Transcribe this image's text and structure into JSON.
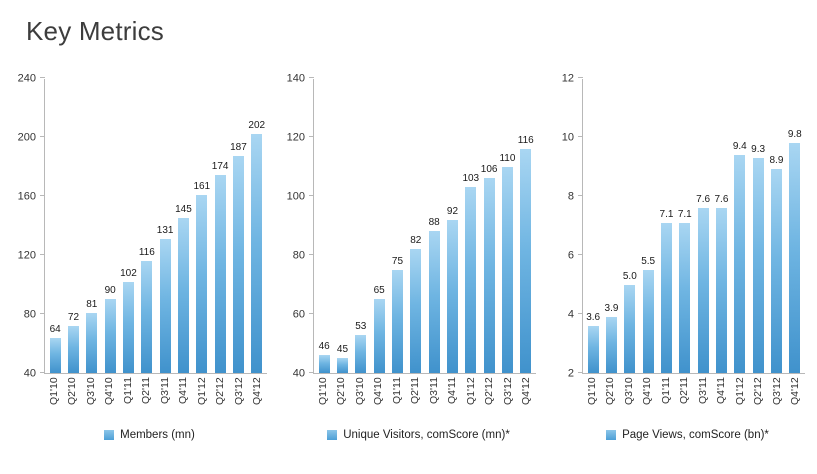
{
  "title": "Key Metrics",
  "colors": {
    "accent_blue": "#4d9fd6",
    "bar_gradient_top": "#a9d6f2",
    "bar_gradient_bottom": "#4092cc",
    "axis_line": "#b8b8b8",
    "title_text": "#3d3d3d"
  },
  "chart_data": [
    {
      "type": "bar",
      "legend": "Members (mn)",
      "categories": [
        "Q1'10",
        "Q2'10",
        "Q3'10",
        "Q4'10",
        "Q1'11",
        "Q2'11",
        "Q3'11",
        "Q4'11",
        "Q1'12",
        "Q2'12",
        "Q3'12",
        "Q4'12"
      ],
      "values": [
        64,
        72,
        81,
        90,
        102,
        116,
        131,
        145,
        161,
        174,
        187,
        202
      ],
      "labels": [
        "64",
        "72",
        "81",
        "90",
        "102",
        "116",
        "131",
        "145",
        "161",
        "174",
        "187",
        "202"
      ],
      "ylim": [
        40,
        240
      ],
      "yticks": [
        40,
        80,
        120,
        160,
        200,
        240
      ],
      "grid": false,
      "legend_position": "bottom"
    },
    {
      "type": "bar",
      "legend": "Unique Visitors, comScore (mn)*",
      "categories": [
        "Q1'10",
        "Q2'10",
        "Q3'10",
        "Q4'10",
        "Q1'11",
        "Q2'11",
        "Q3'11",
        "Q4'11",
        "Q1'12",
        "Q2'12",
        "Q3'12",
        "Q4'12"
      ],
      "values": [
        46,
        45,
        53,
        65,
        75,
        82,
        88,
        92,
        103,
        106,
        110,
        116
      ],
      "labels": [
        "46",
        "45",
        "53",
        "65",
        "75",
        "82",
        "88",
        "92",
        "103",
        "106",
        "110",
        "116"
      ],
      "ylim": [
        40,
        140
      ],
      "yticks": [
        40,
        60,
        80,
        100,
        120,
        140
      ],
      "grid": false,
      "legend_position": "bottom"
    },
    {
      "type": "bar",
      "legend": "Page Views, comScore (bn)*",
      "categories": [
        "Q1'10",
        "Q2'10",
        "Q3'10",
        "Q4'10",
        "Q1'11",
        "Q2'11",
        "Q3'11",
        "Q4'11",
        "Q1'12",
        "Q2'12",
        "Q3'12",
        "Q4'12"
      ],
      "values": [
        3.6,
        3.9,
        5.0,
        5.5,
        7.1,
        7.1,
        7.6,
        7.6,
        9.4,
        9.3,
        8.9,
        9.8
      ],
      "labels": [
        "3.6",
        "3.9",
        "5.0",
        "5.5",
        "7.1",
        "7.1",
        "7.6",
        "7.6",
        "9.4",
        "9.3",
        "8.9",
        "9.8"
      ],
      "ylim": [
        2,
        12
      ],
      "yticks": [
        2,
        4,
        6,
        8,
        10,
        12
      ],
      "grid": false,
      "legend_position": "bottom"
    }
  ]
}
